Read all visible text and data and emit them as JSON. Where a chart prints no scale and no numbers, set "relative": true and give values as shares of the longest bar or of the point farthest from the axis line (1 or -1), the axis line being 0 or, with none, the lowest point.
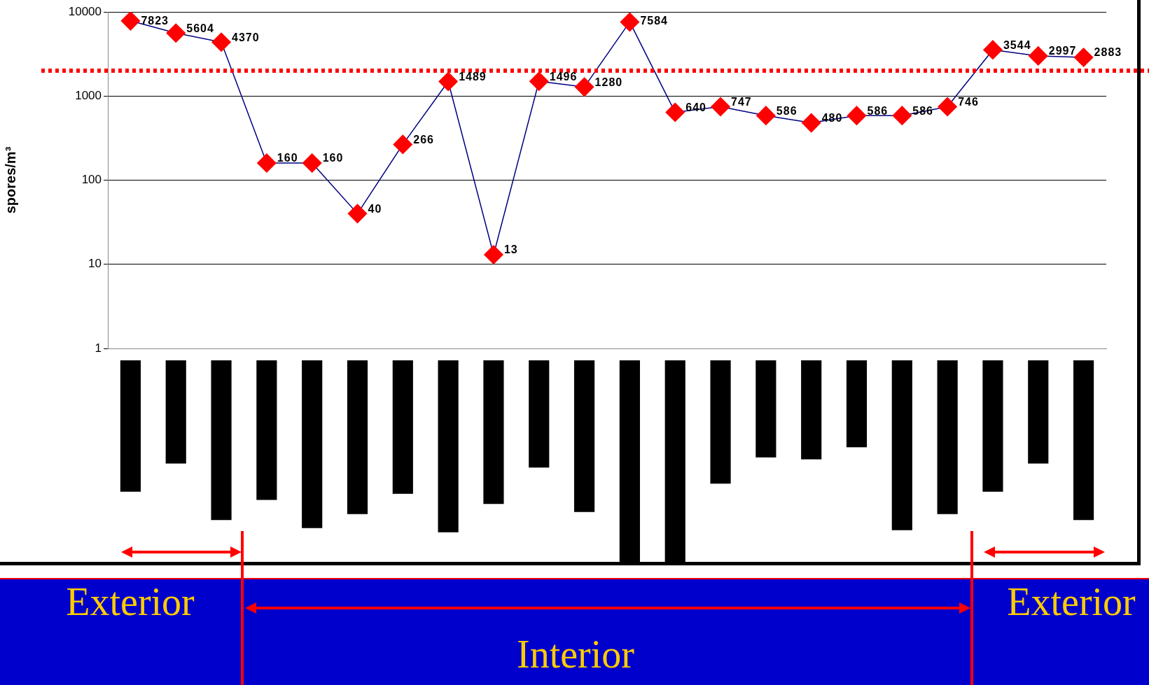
{
  "chart_data": [
    {
      "type": "line",
      "ylabel": "spores/m³",
      "categories": [
        null,
        null,
        null,
        null,
        null,
        null,
        null,
        null,
        null,
        null,
        null,
        null,
        null,
        null,
        null,
        null,
        null,
        null,
        null,
        null,
        null,
        null
      ],
      "series": [
        {
          "color": "#ff0000",
          "values": [
            7823,
            5604,
            4370,
            160,
            160,
            40,
            266,
            1489,
            13,
            1496,
            1280,
            7584,
            640,
            747,
            586,
            480,
            586,
            586,
            746,
            3544,
            2997,
            2883
          ]
        }
      ],
      "marker": "diamond",
      "data_labels": true,
      "grid": "y",
      "log": true,
      "ylim": [
        1,
        10000
      ],
      "yticks": [
        1,
        10,
        100,
        1000,
        10000
      ],
      "ref_lines": [
        {
          "axis": "y",
          "value": 2000,
          "color": "#ff0000",
          "line_style": "dotted"
        }
      ]
    },
    {
      "type": "bar",
      "relative": true,
      "categories": [
        null,
        null,
        null,
        null,
        null,
        null,
        null,
        null,
        null,
        null,
        null,
        null,
        null,
        null,
        null,
        null,
        null,
        null,
        null,
        null,
        null,
        null
      ],
      "values": [
        -0.65,
        -0.51,
        -0.79,
        -0.69,
        -0.83,
        -0.76,
        -0.66,
        -0.85,
        -0.71,
        -0.53,
        -0.75,
        -1,
        -1,
        -0.61,
        -0.48,
        -0.49,
        -0.43,
        -0.84,
        -0.76,
        -0.65,
        -0.51,
        -0.79
      ],
      "color": "#000000",
      "annotations": [
        "Exterior",
        "Interior",
        "Exterior"
      ]
    }
  ]
}
